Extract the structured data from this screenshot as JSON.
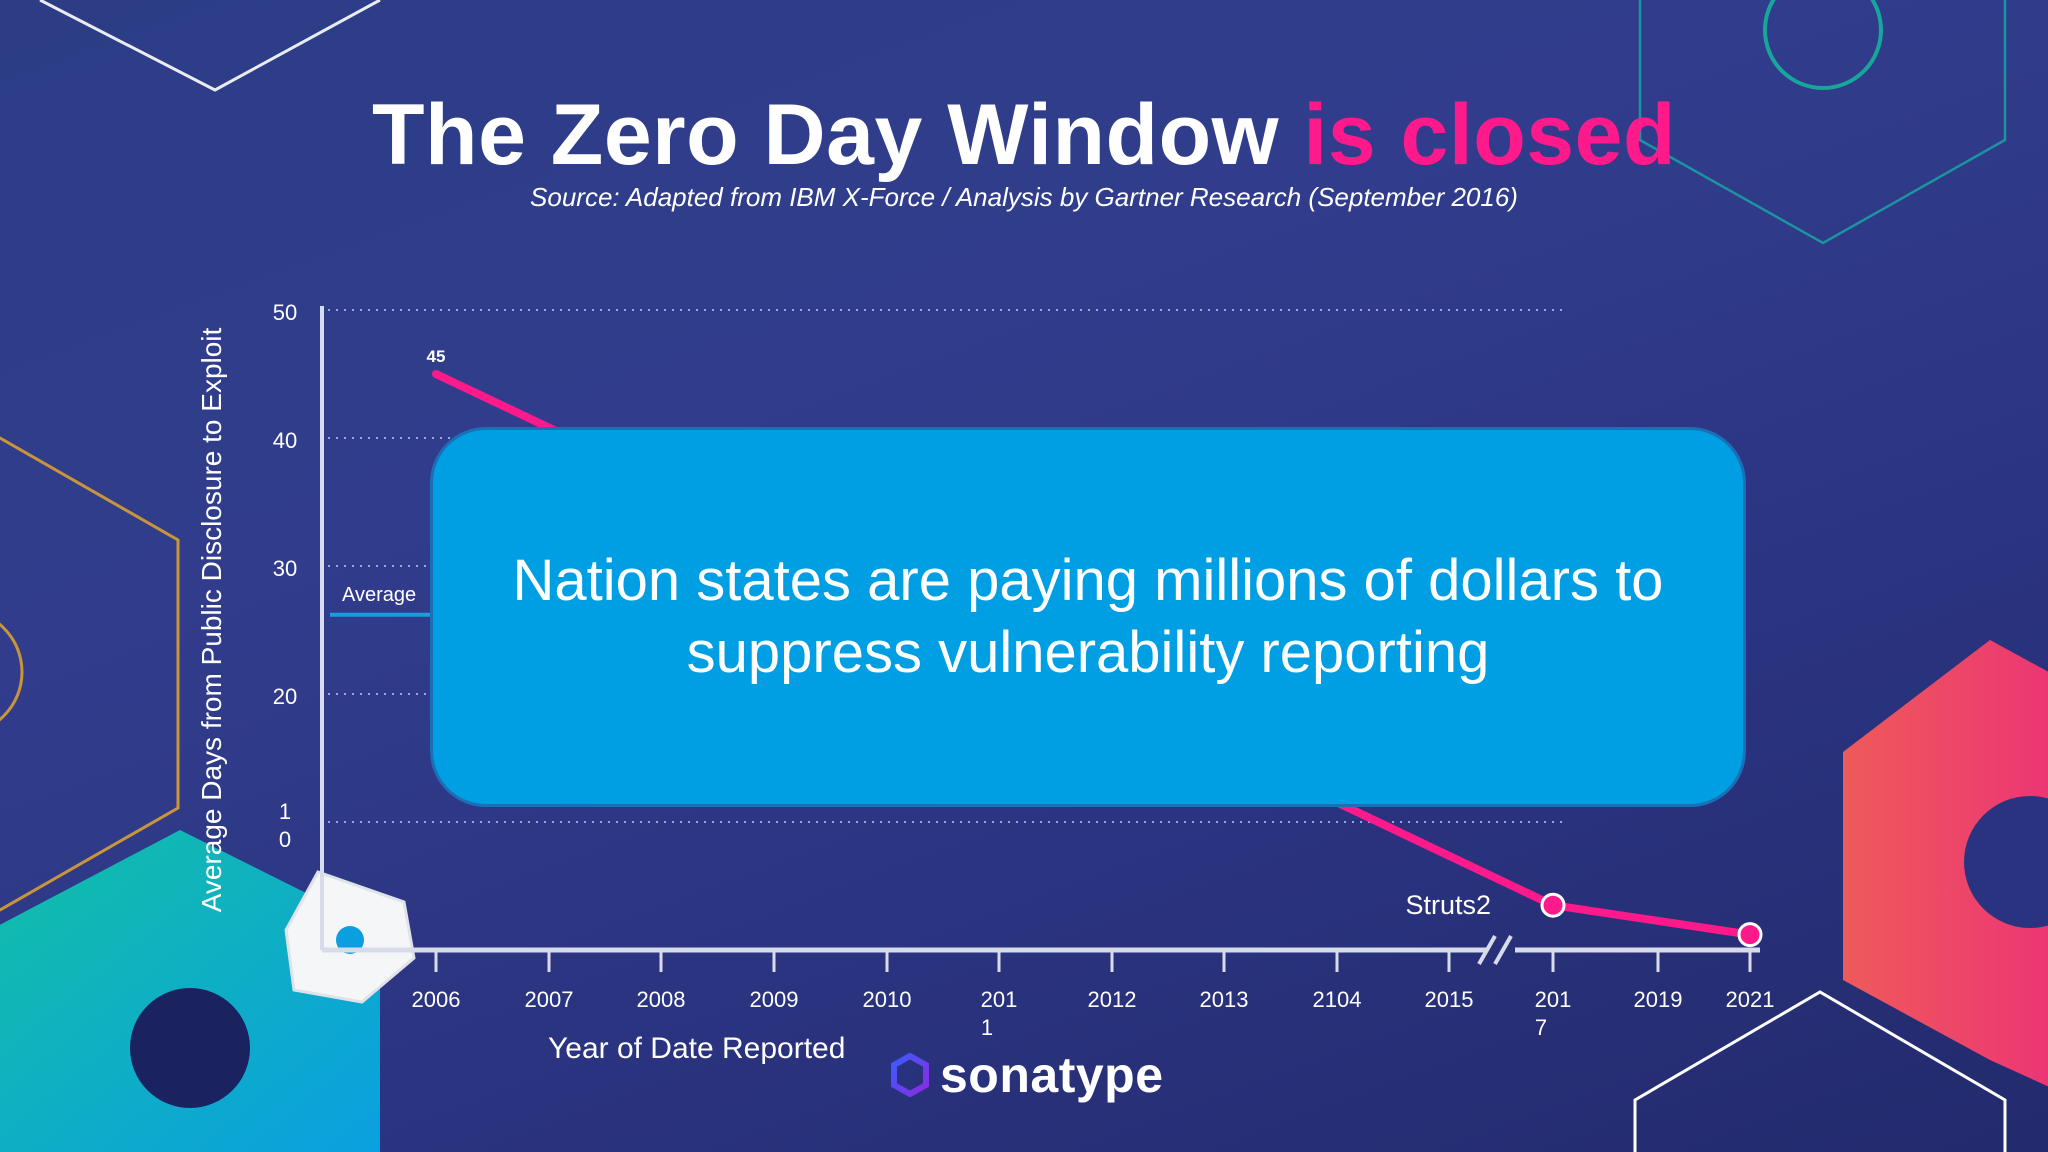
{
  "slide": {
    "title_main": "The Zero Day Window",
    "title_accent": "is closed",
    "source": "Source: Adapted from IBM X-Force / Analysis by Gartner Research (September 2016)",
    "callout_line1": "Nation states are paying millions of dollars to",
    "callout_line2": "suppress vulnerability reporting",
    "logo_text": "sonatype",
    "logo_icon": "sonatype-hexagon-icon",
    "colors": {
      "background": "#2c3d86",
      "accent_pink": "#ff1a8c",
      "callout_blue": "#009fe3",
      "average_line": "#1b9be0"
    }
  },
  "chart_data": {
    "type": "line",
    "xlabel": "Year of Date Reported",
    "ylabel": "Average Days from Public Disclosure to Exploit",
    "ylim": [
      0,
      50
    ],
    "yticks": [
      {
        "value": 0,
        "label": ""
      },
      {
        "value": 10,
        "label": "1\n0"
      },
      {
        "value": 20,
        "label": "20"
      },
      {
        "value": 30,
        "label": "30"
      },
      {
        "value": 40,
        "label": "40"
      },
      {
        "value": 50,
        "label": "50"
      }
    ],
    "categories": [
      "2006",
      "2007",
      "2008",
      "2009",
      "2010",
      "201\n1",
      "2012",
      "2013",
      "2104",
      "2015",
      "201\n7",
      "2019",
      "2021"
    ],
    "axis_break_after": "2015",
    "grid": "dotted horizontal",
    "series": [
      {
        "color": "#ff1a8c",
        "points": [
          {
            "x": "2006",
            "y": 45,
            "label": "45"
          },
          {
            "x": "201\n7",
            "y": 3.5,
            "label": "Struts2",
            "marker": true
          },
          {
            "x": "2021",
            "y": 1.2,
            "marker": true
          }
        ]
      }
    ],
    "reference_line": {
      "label": "Average",
      "y": 26.5
    }
  }
}
